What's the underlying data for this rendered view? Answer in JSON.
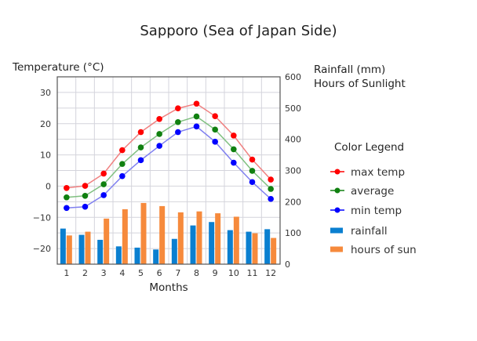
{
  "chart_data": {
    "type": "line+bar",
    "title": "Sapporo (Sea of Japan Side)",
    "xlabel": "Months",
    "ylabel_left": "Temperature (°C)",
    "ylabel_right": [
      "Rainfall (mm)",
      "Hours of Sunlight"
    ],
    "categories": [
      "1",
      "2",
      "3",
      "4",
      "5",
      "6",
      "7",
      "8",
      "9",
      "10",
      "11",
      "12"
    ],
    "ylim_left": [
      -25,
      35
    ],
    "yticks_left": [
      "30",
      "20",
      "10",
      "0",
      "−10",
      "−20"
    ],
    "ylim_right": [
      0,
      600
    ],
    "yticks_right": [
      "600",
      "500",
      "400",
      "300",
      "200",
      "100",
      "0"
    ],
    "grid": true,
    "legend_title": "Color Legend",
    "legend_position": "right",
    "series": [
      {
        "name": "max temp",
        "kind": "line",
        "axis": "left",
        "color": "#ff0000",
        "line_color": "#f08080",
        "values": [
          -0.6,
          0.1,
          4.0,
          11.5,
          17.3,
          21.5,
          24.9,
          26.4,
          22.4,
          16.2,
          8.5,
          2.1
        ]
      },
      {
        "name": "average",
        "kind": "line",
        "axis": "left",
        "color": "#108010",
        "line_color": "#80c080",
        "values": [
          -3.6,
          -3.1,
          0.6,
          7.1,
          12.4,
          16.7,
          20.5,
          22.3,
          18.1,
          11.8,
          4.9,
          -0.9
        ]
      },
      {
        "name": "min temp",
        "kind": "line",
        "axis": "left",
        "color": "#0000ff",
        "line_color": "#8080f0",
        "values": [
          -7.0,
          -6.6,
          -2.9,
          3.2,
          8.3,
          12.9,
          17.3,
          19.1,
          14.2,
          7.5,
          1.3,
          -4.1
        ]
      },
      {
        "name": "rainfall",
        "kind": "bar",
        "axis": "right",
        "color": "#0a7fd0",
        "values": [
          114,
          94,
          78,
          57,
          53,
          47,
          81,
          124,
          135,
          109,
          104,
          112
        ]
      },
      {
        "name": "hours of sun",
        "kind": "bar",
        "axis": "right",
        "color": "#f68a3c",
        "values": [
          92,
          104,
          146,
          176,
          196,
          186,
          166,
          169,
          163,
          152,
          99,
          84
        ]
      }
    ]
  }
}
